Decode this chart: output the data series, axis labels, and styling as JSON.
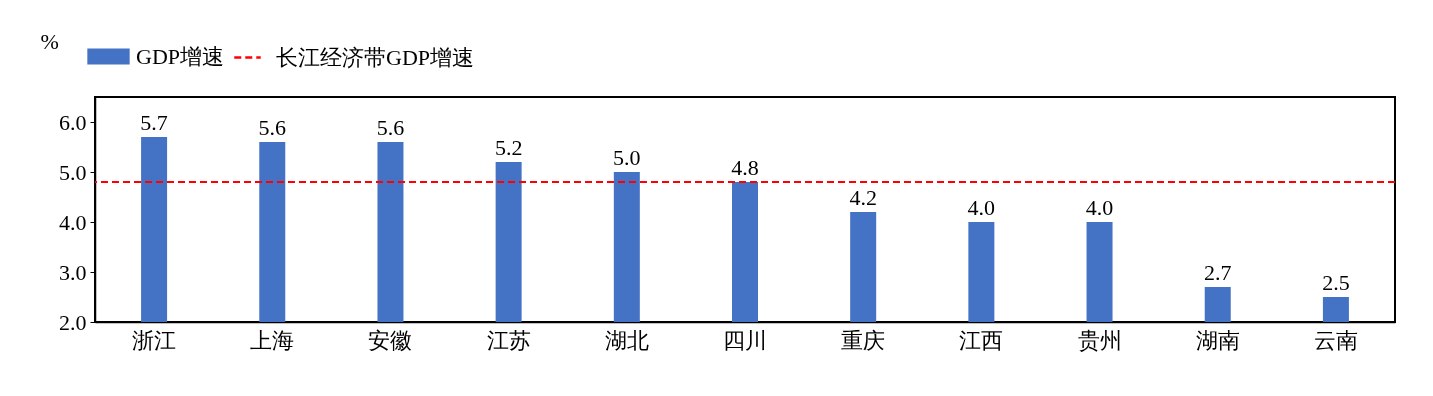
{
  "chart_data": {
    "type": "bar",
    "ylabel": "%",
    "categories": [
      "浙江",
      "上海",
      "安徽",
      "江苏",
      "湖北",
      "四川",
      "重庆",
      "江西",
      "贵州",
      "湖南",
      "云南"
    ],
    "series": [
      {
        "name": "GDP增速",
        "color": "#4472c4",
        "values": [
          5.7,
          5.6,
          5.6,
          5.2,
          5.0,
          4.8,
          4.2,
          4.0,
          4.0,
          2.7,
          2.5
        ]
      }
    ],
    "ylim": [
      2,
      6.5
    ],
    "yticks": [
      {
        "value": 2,
        "label": "2.0"
      },
      {
        "value": 3,
        "label": "3.0"
      },
      {
        "value": 4,
        "label": "4.0"
      },
      {
        "value": 5,
        "label": "5.0"
      },
      {
        "value": 6,
        "label": "6.0"
      }
    ],
    "ref_lines": [
      {
        "axis": "y",
        "value": 4.8,
        "label": "长江经济带GDP增速",
        "color": "#ff0000",
        "line_style": "dashed"
      }
    ],
    "value_labels": [
      "5.7",
      "5.6",
      "5.6",
      "5.2",
      "5.0",
      "4.8",
      "4.2",
      "4.0",
      "4.0",
      "2.7",
      "2.5"
    ],
    "grid": false,
    "legend": "top"
  }
}
